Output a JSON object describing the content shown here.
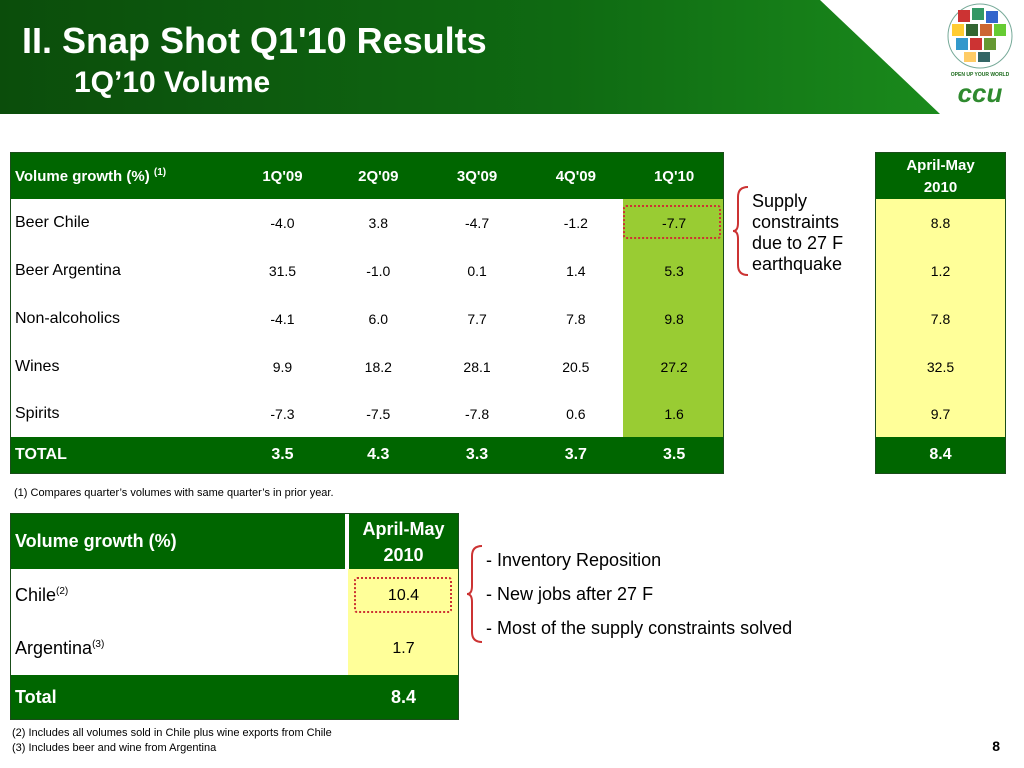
{
  "header": {
    "title": "II. Snap Shot Q1'10 Results",
    "subtitle": "1Q’10 Volume",
    "logo_tagline": "OPEN UP YOUR WORLD",
    "logo_text": "ccu"
  },
  "volume_table": {
    "header_label": "Volume growth (%)",
    "header_sup": "(1)",
    "columns": [
      "1Q'09",
      "2Q'09",
      "3Q'09",
      "4Q'09",
      "1Q'10"
    ],
    "rows": [
      {
        "label": "Beer Chile",
        "values": [
          "-4.0",
          "3.8",
          "-4.7",
          "-1.2",
          "-7.7"
        ]
      },
      {
        "label": "Beer Argentina",
        "values": [
          "31.5",
          "-1.0",
          "0.1",
          "1.4",
          "5.3"
        ]
      },
      {
        "label": "Non-alcoholics",
        "values": [
          "-4.1",
          "6.0",
          "7.7",
          "7.8",
          "9.8"
        ]
      },
      {
        "label": "Wines",
        "values": [
          "9.9",
          "18.2",
          "28.1",
          "20.5",
          "27.2"
        ]
      },
      {
        "label": "Spirits",
        "values": [
          "-7.3",
          "-7.5",
          "-7.8",
          "0.6",
          "1.6"
        ]
      }
    ],
    "total": {
      "label": "TOTAL",
      "values": [
        "3.5",
        "4.3",
        "3.3",
        "3.7",
        "3.5"
      ]
    }
  },
  "april_may_table": {
    "header_line1": "April-May",
    "header_line2": "2010",
    "values": [
      "8.8",
      "1.2",
      "7.8",
      "32.5",
      "9.7"
    ],
    "total": "8.4"
  },
  "annotation": {
    "lines": [
      "Supply",
      "constraints",
      "due to 27 F",
      "earthquake"
    ]
  },
  "footnote1": "(1) Compares quarter’s volumes with same quarter’s in prior year.",
  "country_table": {
    "header_label": "Volume growth (%)",
    "header_line1": "April-May",
    "header_line2": "2010",
    "rows": [
      {
        "label": "Chile",
        "sup": "(2)",
        "value": "10.4"
      },
      {
        "label": "Argentina",
        "sup": "(3)",
        "value": "1.7"
      }
    ],
    "total": {
      "label": "Total",
      "value": "8.4"
    }
  },
  "bullets": [
    "- Inventory Reposition",
    "- New jobs after 27 F",
    "- Most of the supply constraints solved"
  ],
  "footnotes": [
    "(2) Includes all volumes sold in Chile plus wine exports from Chile",
    "(3) Includes beer and wine from Argentina"
  ],
  "page_number": "8",
  "colors": {
    "banner_green": "#0a5c0a",
    "header_green": "#006600",
    "highlight_green": "#99cc33",
    "pale_yellow": "#ffff99",
    "dotted_red": "#cc3333"
  }
}
